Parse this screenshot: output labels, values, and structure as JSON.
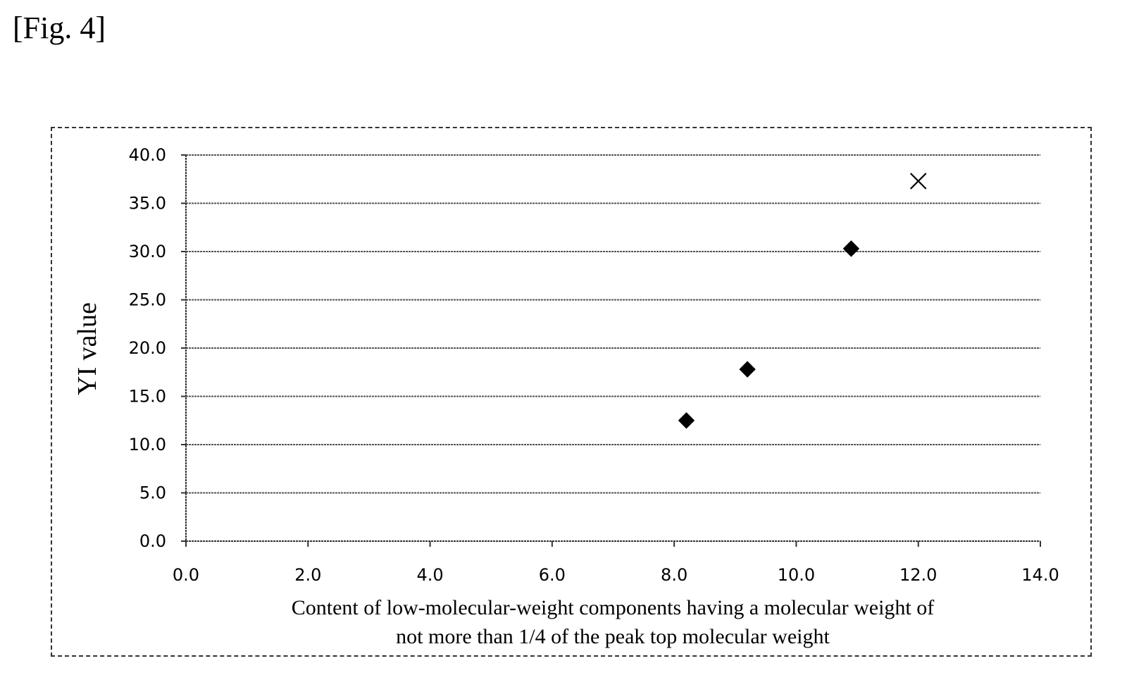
{
  "figure_label": "[Fig. 4]",
  "chart_data": {
    "type": "scatter",
    "title": "",
    "ylabel": "YI value",
    "xlabel_lines": [
      "Content of low-molecular-weight components having a molecular weight of",
      "not more than 1/4 of the peak top molecular weight"
    ],
    "xlim": [
      0,
      14
    ],
    "ylim": [
      0,
      40
    ],
    "x_ticks": [
      "0.0",
      "2.0",
      "4.0",
      "6.0",
      "8.0",
      "10.0",
      "12.0",
      "14.0"
    ],
    "y_ticks": [
      "0.0",
      "5.0",
      "10.0",
      "15.0",
      "20.0",
      "25.0",
      "30.0",
      "35.0",
      "40.0"
    ],
    "grid": "horizontal",
    "series": [
      {
        "marker": "diamond",
        "color": "#000000",
        "points": [
          {
            "x": 8.2,
            "y": 12.5
          },
          {
            "x": 9.2,
            "y": 17.8
          },
          {
            "x": 10.9,
            "y": 30.3
          }
        ]
      },
      {
        "marker": "x",
        "color": "#000000",
        "points": [
          {
            "x": 12.0,
            "y": 37.3
          }
        ]
      }
    ]
  }
}
